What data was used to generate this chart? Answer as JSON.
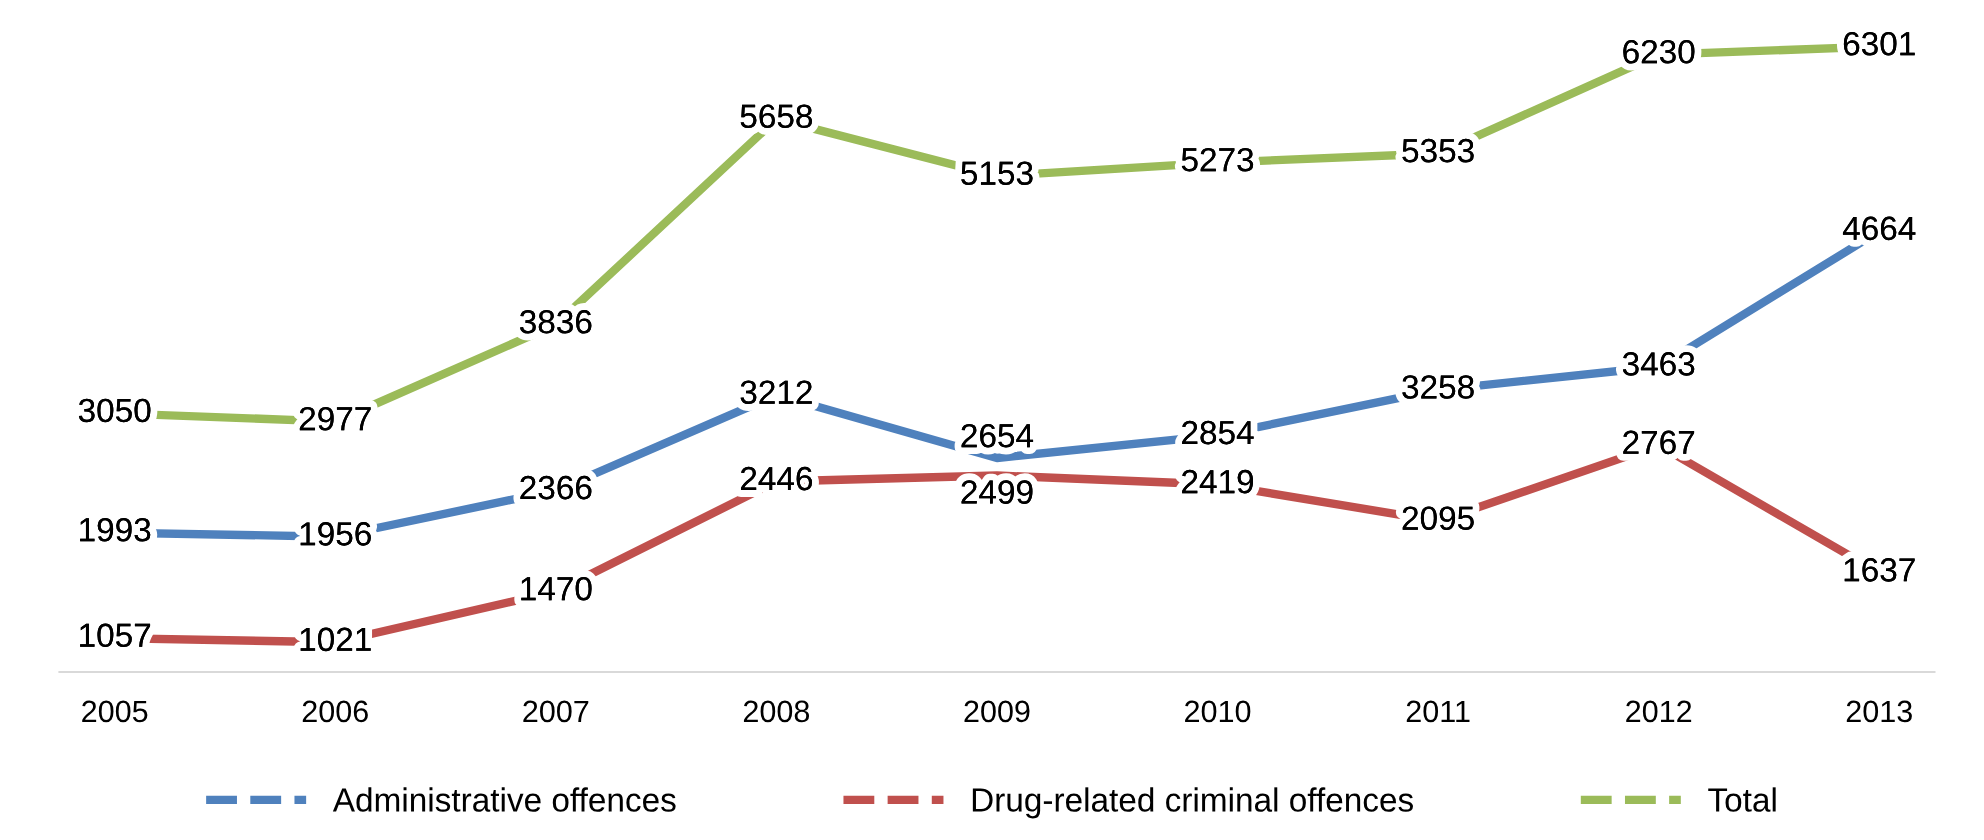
{
  "chart_data": {
    "type": "line",
    "categories": [
      "2005",
      "2006",
      "2007",
      "2008",
      "2009",
      "2010",
      "2011",
      "2012",
      "2013"
    ],
    "series": [
      {
        "name": "Administrative offences",
        "color": "#4f81bd",
        "values": [
          1993,
          1956,
          2366,
          3212,
          2654,
          2854,
          3258,
          3463,
          4664
        ]
      },
      {
        "name": "Drug-related criminal offences",
        "color": "#c0504d",
        "values": [
          1057,
          1021,
          1470,
          2446,
          2499,
          2419,
          2095,
          2767,
          1637
        ]
      },
      {
        "name": "Total",
        "color": "#9bbb59",
        "values": [
          3050,
          2977,
          3836,
          5658,
          5153,
          5273,
          5353,
          6230,
          6301
        ]
      }
    ],
    "data_labels": true,
    "legend": "bottom",
    "grid": false,
    "marker": "none",
    "line_style": "solid",
    "tick_labels": "x"
  }
}
